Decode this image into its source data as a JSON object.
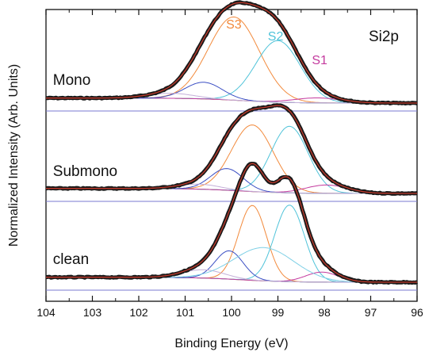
{
  "chart_data": {
    "type": "line",
    "title": "",
    "xlabel": "Binding Energy (eV)",
    "ylabel": "Normalized Intensity (Arb. Units)",
    "xlim": [
      104,
      96
    ],
    "x_reversed": true,
    "x_ticks": [
      "104",
      "103",
      "102",
      "101",
      "100",
      "99",
      "98",
      "97",
      "96"
    ],
    "y_ticks": "none",
    "annotation": "Si2p",
    "component_labels": [
      {
        "name": "S3",
        "color": "#f28a3c",
        "x": 99.95
      },
      {
        "name": "S2",
        "color": "#4fc3d9",
        "x": 99.05
      },
      {
        "name": "S1",
        "color": "#c43a9e",
        "x": 98.1
      }
    ],
    "component_colors": {
      "S3": "#f28a3c",
      "S2": "#4fc3d9",
      "S1": "#c43a9e",
      "bulk_high": "#3b4fc4",
      "bulk_low": "#c4b0d9",
      "background": "#8fbf3a",
      "baseline": "#7a7ad0",
      "data": "#1a1a1a",
      "fit": "#c0392b"
    },
    "panels": [
      {
        "label": "Mono",
        "peaks": [
          {
            "name": "S3",
            "center": 99.95,
            "height": 0.5,
            "width": 0.55
          },
          {
            "name": "S2",
            "center": 99.0,
            "height": 0.37,
            "width": 0.48
          },
          {
            "name": "S1",
            "center": 98.15,
            "height": 0.03,
            "width": 0.5
          },
          {
            "name": "bulk_high",
            "center": 100.6,
            "height": 0.1,
            "width": 0.4
          },
          {
            "name": "bulk_low",
            "center": 101.3,
            "height": 0.03,
            "width": 0.5
          }
        ],
        "background_step": 0.03
      },
      {
        "label": "Submono",
        "peaks": [
          {
            "name": "S3",
            "center": 99.55,
            "height": 0.4,
            "width": 0.45
          },
          {
            "name": "S2",
            "center": 98.75,
            "height": 0.4,
            "width": 0.4
          },
          {
            "name": "S1",
            "center": 97.95,
            "height": 0.05,
            "width": 0.45
          },
          {
            "name": "bulk_high",
            "center": 100.1,
            "height": 0.13,
            "width": 0.35
          },
          {
            "name": "bulk_low",
            "center": 100.7,
            "height": 0.03,
            "width": 0.45
          }
        ],
        "background_step": 0.03
      },
      {
        "label": "clean",
        "peaks": [
          {
            "name": "S3",
            "center": 99.55,
            "height": 0.45,
            "width": 0.3
          },
          {
            "name": "S2",
            "center": 98.75,
            "height": 0.46,
            "width": 0.32
          },
          {
            "name": "S1",
            "center": 98.05,
            "height": 0.06,
            "width": 0.35
          },
          {
            "name": "bulk_high",
            "center": 100.05,
            "height": 0.17,
            "width": 0.3
          },
          {
            "name": "bulk_low",
            "center": 100.6,
            "height": 0.05,
            "width": 0.45
          },
          {
            "name": "extra",
            "center": 99.3,
            "height": 0.2,
            "width": 0.65
          }
        ],
        "background_step": 0.03
      }
    ]
  }
}
